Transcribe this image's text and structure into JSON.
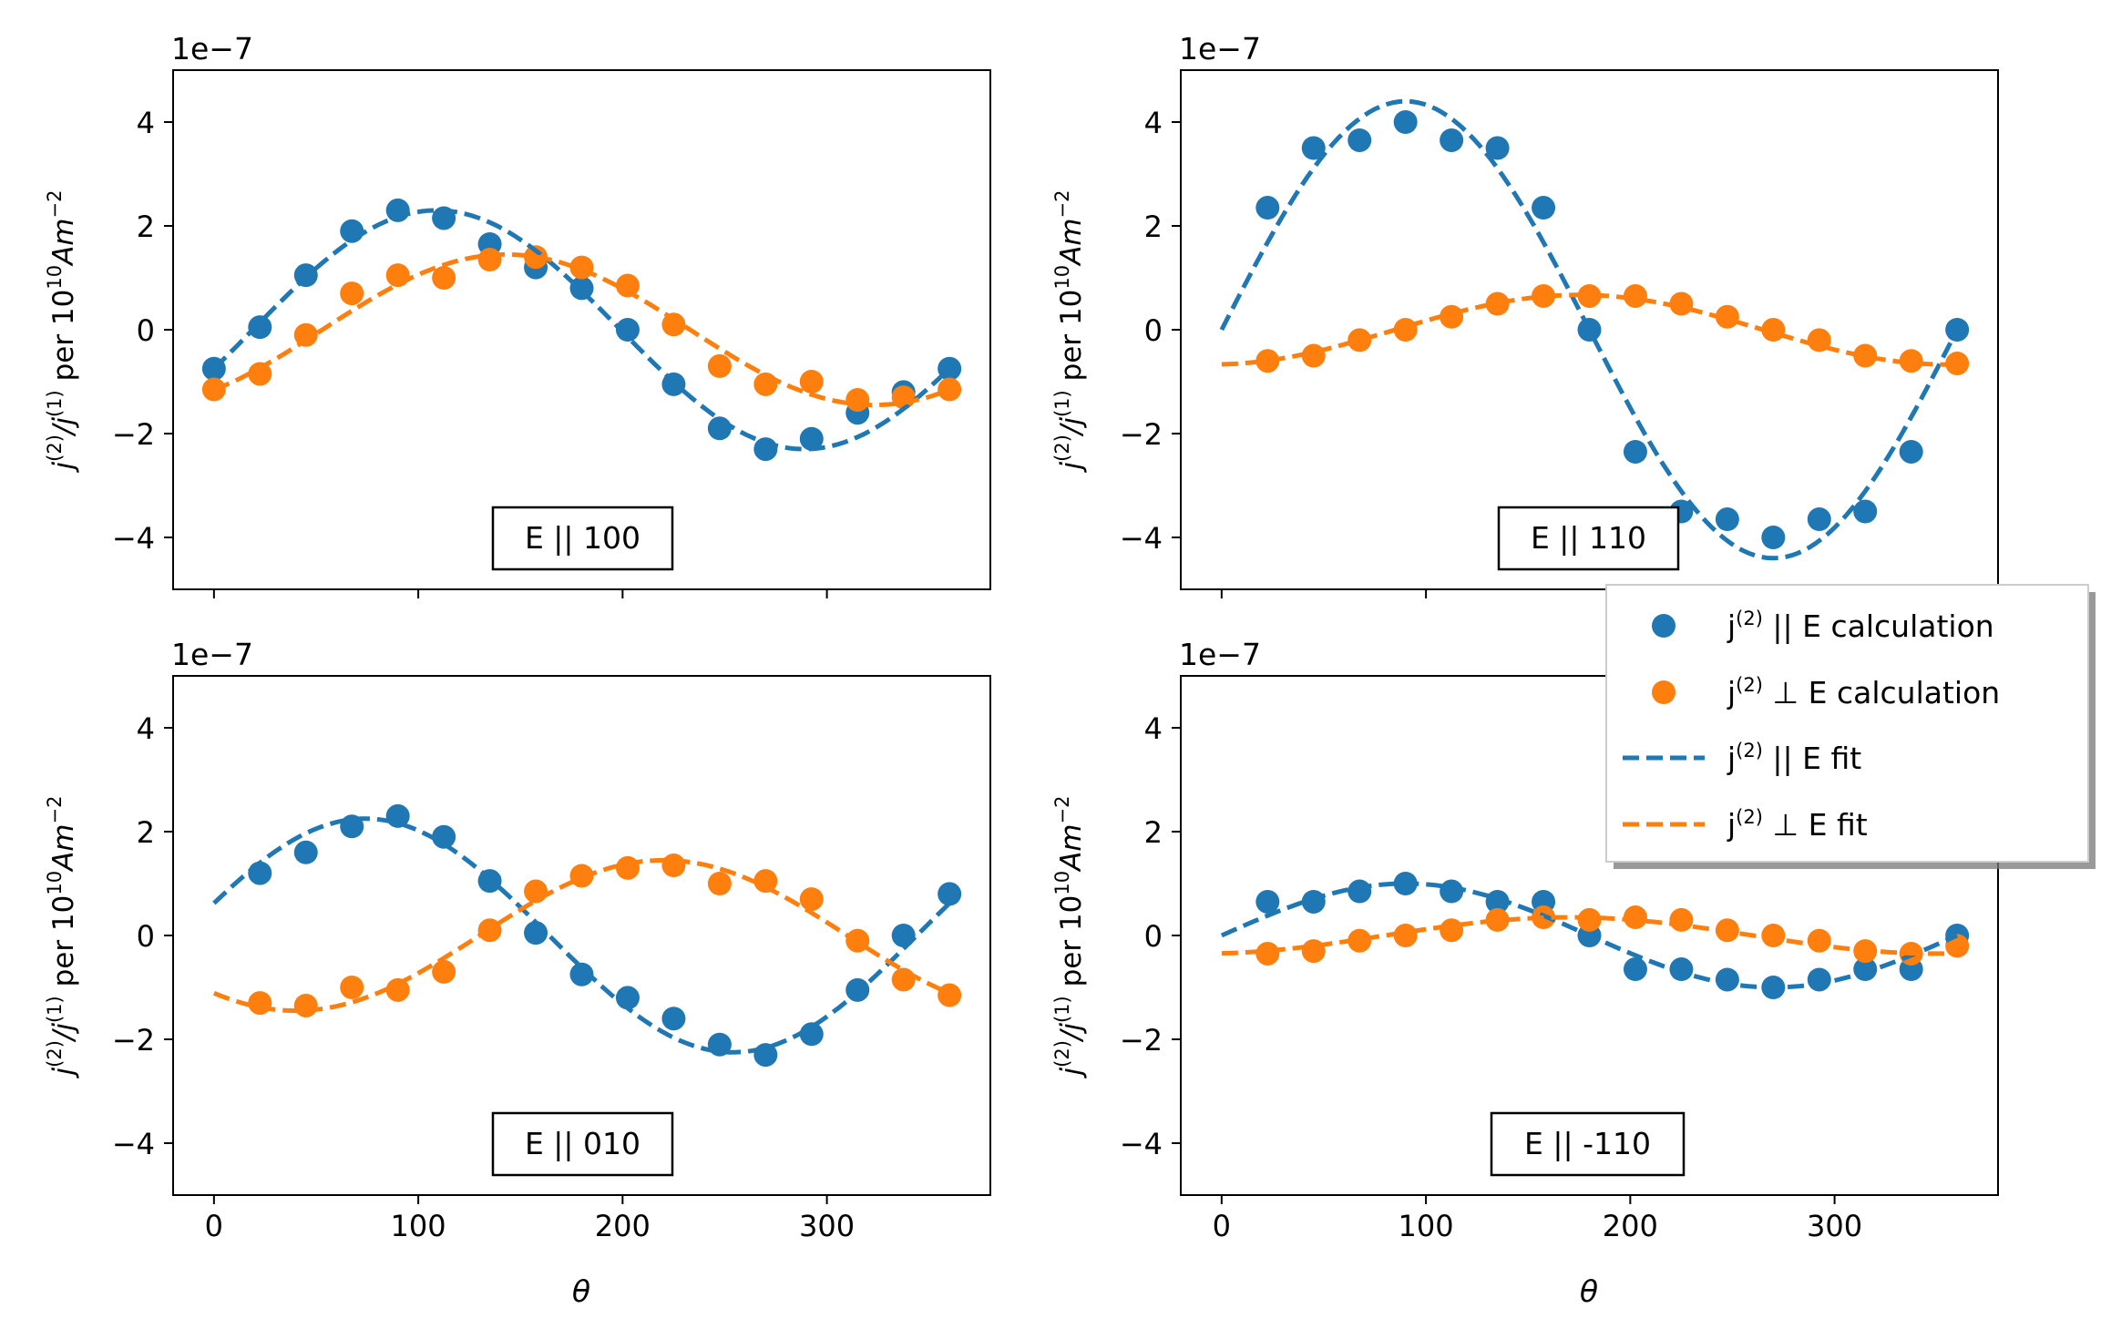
{
  "figure": {
    "scale_label": "1e−7",
    "ylabel_main": "j",
    "ylabel_sup2": "(2)",
    "ylabel_slash": "/j",
    "ylabel_sup1": "(1)",
    "ylabel_per": " per 10",
    "ylabel_sup10": "10",
    "ylabel_unit": "Am",
    "ylabel_supm2": "−2",
    "xlabel": "θ",
    "colors": {
      "par": "#1f77b4",
      "perp": "#ff7f0e"
    }
  },
  "legend": {
    "entries": [
      {
        "prefix": "j",
        "sup": "(2)",
        "suffix": " || E calculation",
        "series": "par",
        "kind": "marker"
      },
      {
        "prefix": "j",
        "sup": "(2)",
        "suffix": " ⊥ E calculation",
        "series": "perp",
        "kind": "marker"
      },
      {
        "prefix": "j",
        "sup": "(2)",
        "suffix": " || E fit",
        "series": "par",
        "kind": "line"
      },
      {
        "prefix": "j",
        "sup": "(2)",
        "suffix": " ⊥ E fit",
        "series": "perp",
        "kind": "line"
      }
    ]
  },
  "chart_data": [
    {
      "type": "scatter",
      "annotation": "E || 100",
      "xlim": [
        -20,
        380
      ],
      "ylim": [
        -5,
        5
      ],
      "xticks": [
        0,
        100,
        200,
        300
      ],
      "yticks": [
        -4,
        -2,
        0,
        2,
        4
      ],
      "xtick_labels": [],
      "ytick_labels": [
        "−4",
        "−2",
        "0",
        "2",
        "4"
      ],
      "x": [
        0,
        22.5,
        45,
        67.5,
        90,
        112.5,
        135,
        157.5,
        180,
        202.5,
        225,
        247.5,
        270,
        292.5,
        315,
        337.5,
        360
      ],
      "series": [
        {
          "name": "j(2) || E calculation",
          "color_key": "par",
          "values": [
            -0.75,
            0.05,
            1.05,
            1.9,
            2.3,
            2.15,
            1.65,
            1.2,
            0.8,
            0.0,
            -1.05,
            -1.9,
            -2.3,
            -2.1,
            -1.6,
            -1.2,
            -0.75
          ]
        },
        {
          "name": "j(2) ⊥ E calculation",
          "color_key": "perp",
          "values": [
            -1.15,
            -0.85,
            -0.1,
            0.7,
            1.05,
            1.0,
            1.35,
            1.4,
            1.2,
            0.85,
            0.1,
            -0.7,
            -1.05,
            -1.0,
            -1.35,
            -1.3,
            -1.15
          ]
        }
      ],
      "fits": [
        {
          "name": "j(2) || E fit",
          "color_key": "par",
          "model": "sin",
          "amplitude": 2.3,
          "phase_deg": -19
        },
        {
          "name": "j(2) ⊥ E fit",
          "color_key": "perp",
          "model": "sin",
          "amplitude": 1.45,
          "phase_deg": -53
        }
      ]
    },
    {
      "type": "scatter",
      "annotation": "E || 110",
      "xlim": [
        -20,
        380
      ],
      "ylim": [
        -5,
        5
      ],
      "xticks": [
        0,
        100,
        200,
        300
      ],
      "yticks": [
        -4,
        -2,
        0,
        2,
        4
      ],
      "xtick_labels": [],
      "ytick_labels": [
        "−4",
        "−2",
        "0",
        "2",
        "4"
      ],
      "x": [
        0,
        22.5,
        45,
        67.5,
        90,
        112.5,
        135,
        157.5,
        180,
        202.5,
        225,
        247.5,
        270,
        292.5,
        315,
        337.5,
        360
      ],
      "series": [
        {
          "name": "j(2) || E calculation",
          "color_key": "par",
          "values": [
            null,
            2.35,
            3.5,
            3.65,
            4.0,
            3.65,
            3.5,
            2.35,
            0.0,
            -2.35,
            -3.5,
            -3.65,
            -4.0,
            -3.65,
            -3.5,
            -2.35,
            0.0
          ]
        },
        {
          "name": "j(2) ⊥ E calculation",
          "color_key": "perp",
          "values": [
            null,
            -0.6,
            -0.5,
            -0.2,
            0.0,
            0.25,
            0.5,
            0.65,
            0.65,
            0.65,
            0.5,
            0.25,
            0.0,
            -0.2,
            -0.5,
            -0.6,
            -0.65
          ]
        }
      ],
      "fits": [
        {
          "name": "j(2) || E fit",
          "color_key": "par",
          "model": "sin",
          "amplitude": 4.4,
          "phase_deg": 0
        },
        {
          "name": "j(2) ⊥ E fit",
          "color_key": "perp",
          "model": "sin",
          "amplitude": 0.67,
          "phase_deg": -85
        }
      ]
    },
    {
      "type": "scatter",
      "annotation": "E || 010",
      "xlim": [
        -20,
        380
      ],
      "ylim": [
        -5,
        5
      ],
      "xticks": [
        0,
        100,
        200,
        300
      ],
      "yticks": [
        -4,
        -2,
        0,
        2,
        4
      ],
      "xtick_labels": [
        "0",
        "100",
        "200",
        "300"
      ],
      "ytick_labels": [
        "−4",
        "−2",
        "0",
        "2",
        "4"
      ],
      "x": [
        0,
        22.5,
        45,
        67.5,
        90,
        112.5,
        135,
        157.5,
        180,
        202.5,
        225,
        247.5,
        270,
        292.5,
        315,
        337.5,
        360
      ],
      "series": [
        {
          "name": "j(2) || E calculation",
          "color_key": "par",
          "values": [
            null,
            1.2,
            1.6,
            2.1,
            2.3,
            1.9,
            1.05,
            0.05,
            -0.75,
            -1.2,
            -1.6,
            -2.1,
            -2.3,
            -1.9,
            -1.05,
            0.0,
            0.8
          ]
        },
        {
          "name": "j(2) ⊥ E calculation",
          "color_key": "perp",
          "values": [
            null,
            -1.3,
            -1.35,
            -1.0,
            -1.05,
            -0.7,
            0.1,
            0.85,
            1.15,
            1.3,
            1.35,
            1.0,
            1.05,
            0.7,
            -0.1,
            -0.85,
            -1.15
          ]
        }
      ],
      "fits": [
        {
          "name": "j(2) || E fit",
          "color_key": "par",
          "model": "sin",
          "amplitude": 2.25,
          "phase_deg": 16
        },
        {
          "name": "j(2) ⊥ E fit",
          "color_key": "perp",
          "model": "sin",
          "amplitude": 1.45,
          "phase_deg": -130
        }
      ]
    },
    {
      "type": "scatter",
      "annotation": "E || -110",
      "xlim": [
        -20,
        380
      ],
      "ylim": [
        -5,
        5
      ],
      "xticks": [
        0,
        100,
        200,
        300
      ],
      "yticks": [
        -4,
        -2,
        0,
        2,
        4
      ],
      "xtick_labels": [
        "0",
        "100",
        "200",
        "300"
      ],
      "ytick_labels": [
        "−4",
        "−2",
        "0",
        "2",
        "4"
      ],
      "x": [
        0,
        22.5,
        45,
        67.5,
        90,
        112.5,
        135,
        157.5,
        180,
        202.5,
        225,
        247.5,
        270,
        292.5,
        315,
        337.5,
        360
      ],
      "series": [
        {
          "name": "j(2) || E calculation",
          "color_key": "par",
          "values": [
            null,
            0.65,
            0.65,
            0.85,
            1.0,
            0.85,
            0.65,
            0.65,
            0.0,
            -0.65,
            -0.65,
            -0.85,
            -1.0,
            -0.85,
            -0.65,
            -0.65,
            0.0
          ]
        },
        {
          "name": "j(2) ⊥ E calculation",
          "color_key": "perp",
          "values": [
            null,
            -0.35,
            -0.3,
            -0.1,
            0.0,
            0.1,
            0.3,
            0.35,
            0.3,
            0.35,
            0.3,
            0.1,
            0.0,
            -0.1,
            -0.3,
            -0.35,
            -0.2
          ]
        }
      ],
      "fits": [
        {
          "name": "j(2) || E fit",
          "color_key": "par",
          "model": "sin",
          "amplitude": 1.0,
          "phase_deg": 0
        },
        {
          "name": "j(2) ⊥ E fit",
          "color_key": "perp",
          "model": "sin",
          "amplitude": 0.35,
          "phase_deg": -80
        }
      ]
    }
  ]
}
